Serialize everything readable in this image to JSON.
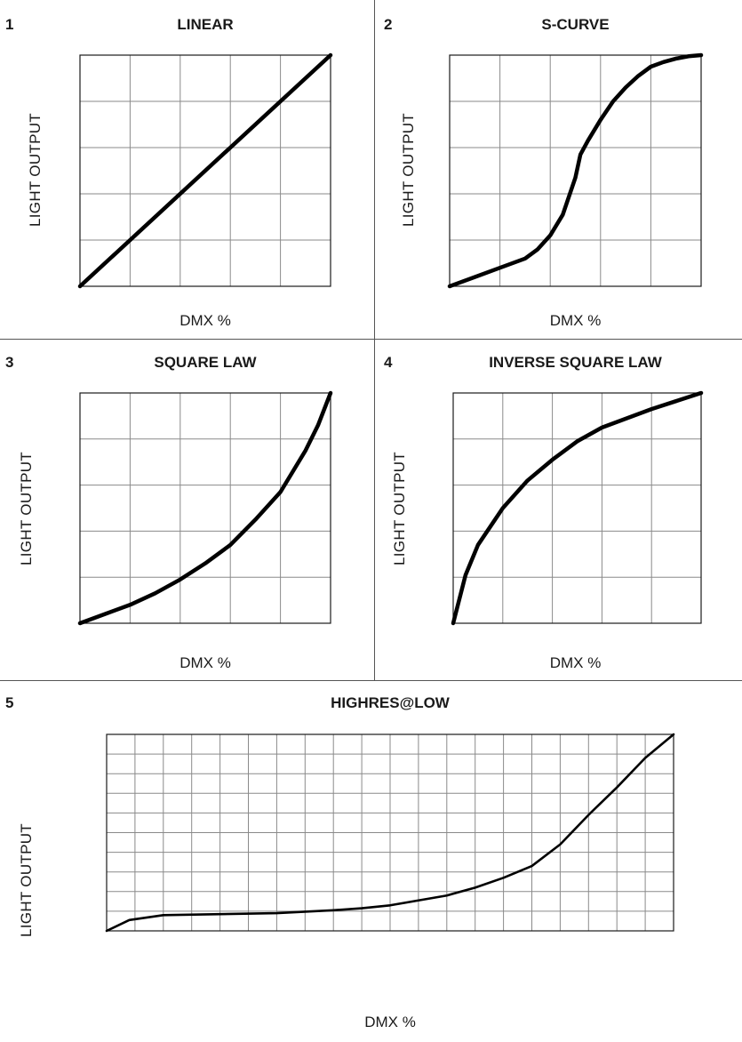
{
  "chart_data": [
    {
      "id": "p1",
      "type": "line",
      "number": "1",
      "title": "LINEAR",
      "xlabel": "DMX %",
      "ylabel": "LIGHT  OUTPUT",
      "xlim": [
        0,
        100
      ],
      "ylim": [
        0,
        100
      ],
      "grid": true,
      "grid_cols": 5,
      "grid_rows": 5,
      "series": [
        {
          "x": [
            0,
            100
          ],
          "y": [
            0,
            100
          ]
        }
      ]
    },
    {
      "id": "p2",
      "type": "line",
      "number": "2",
      "title": "S-CURVE",
      "xlabel": "DMX %",
      "ylabel": "LIGHT  OUTPUT",
      "xlim": [
        0,
        100
      ],
      "ylim": [
        0,
        100
      ],
      "grid": true,
      "grid_cols": 5,
      "grid_rows": 5,
      "series": [
        {
          "x": [
            0,
            10,
            20,
            30,
            35,
            40,
            45,
            50,
            52,
            55,
            60,
            65,
            70,
            75,
            80,
            85,
            90,
            95,
            100
          ],
          "y": [
            0,
            4,
            8,
            12,
            16,
            22,
            31,
            47,
            57,
            63,
            72,
            80,
            86,
            91,
            95,
            97,
            98.5,
            99.5,
            100
          ]
        }
      ]
    },
    {
      "id": "p3",
      "type": "line",
      "number": "3",
      "title": "SQUARE LAW",
      "xlabel": "DMX %",
      "ylabel": "LIGHT OUTPUT",
      "xlim": [
        0,
        100
      ],
      "ylim": [
        0,
        100
      ],
      "grid": true,
      "grid_cols": 5,
      "grid_rows": 5,
      "series": [
        {
          "x": [
            0,
            10,
            20,
            30,
            40,
            50,
            60,
            70,
            80,
            90,
            95,
            100
          ],
          "y": [
            0,
            4,
            8,
            13,
            19,
            26,
            34,
            45,
            57,
            75,
            86,
            100
          ]
        }
      ]
    },
    {
      "id": "p4",
      "type": "line",
      "number": "4",
      "title": "INVERSE SQUARE LAW",
      "xlabel": "DMX %",
      "ylabel": "LIGHT OUTPUT",
      "xlim": [
        0,
        100
      ],
      "ylim": [
        0,
        100
      ],
      "grid": true,
      "grid_cols": 5,
      "grid_rows": 5,
      "series": [
        {
          "x": [
            0,
            5,
            10,
            20,
            30,
            40,
            50,
            60,
            70,
            80,
            90,
            100
          ],
          "y": [
            0,
            21,
            34,
            50,
            62,
            71,
            79,
            85,
            89,
            93,
            96.5,
            100
          ]
        }
      ]
    },
    {
      "id": "p5",
      "type": "line",
      "number": "5",
      "title": "HIGHRES@LOW",
      "xlabel": "DMX %",
      "ylabel": "LIGHT OUTPUT",
      "xlim": [
        0,
        100
      ],
      "ylim": [
        0,
        100
      ],
      "grid": true,
      "grid_cols": 20,
      "grid_rows": 10,
      "series": [
        {
          "x": [
            0,
            4,
            10,
            20,
            30,
            40,
            45,
            50,
            55,
            60,
            65,
            70,
            75,
            80,
            85,
            90,
            95,
            100
          ],
          "y": [
            0,
            5.5,
            8,
            8.5,
            9,
            10.5,
            11.5,
            13,
            15.5,
            18,
            22,
            27,
            33,
            44,
            59,
            73,
            88,
            100
          ]
        }
      ]
    }
  ]
}
